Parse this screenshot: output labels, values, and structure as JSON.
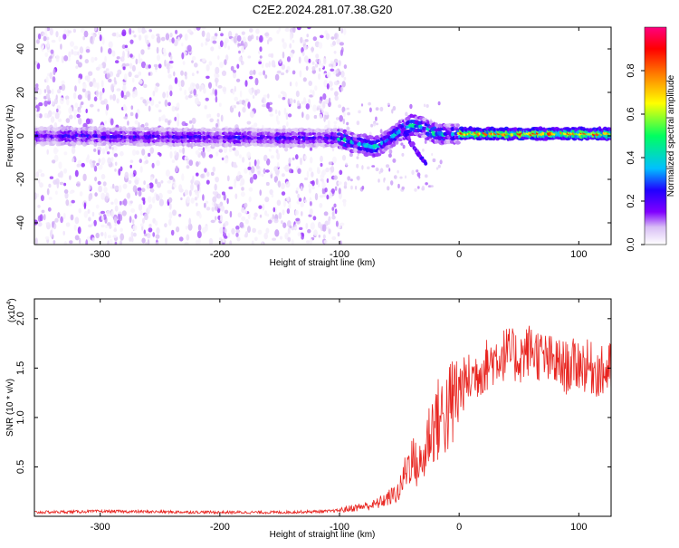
{
  "figure_title": "C2E2.2024.281.07.38.G20",
  "chart_data": [
    {
      "type": "heatmap",
      "xlabel": "Height of straight line (km)",
      "ylabel": "Frequency (Hz)",
      "xlim": [
        -355,
        127
      ],
      "ylim": [
        -50,
        50
      ],
      "x_ticks": [
        -300,
        -200,
        -100,
        0,
        100
      ],
      "y_ticks": [
        -40,
        -20,
        0,
        20,
        40
      ],
      "colorbar": {
        "label": "Normalized spectral amplitude",
        "range": [
          0.0,
          1.0
        ],
        "ticks": [
          0.0,
          0.2,
          0.4,
          0.6,
          0.8
        ],
        "colormap": [
          "#ffffff",
          "#d9bff5",
          "#8000ff",
          "#2000ff",
          "#00c0ff",
          "#00ff60",
          "#ffff00",
          "#ff8000",
          "#ff0000",
          "#ff0080"
        ]
      },
      "ridge": [
        {
          "x": -355,
          "f": 0
        },
        {
          "x": -100,
          "f": -1
        },
        {
          "x": -90,
          "f": -3
        },
        {
          "x": -80,
          "f": -4
        },
        {
          "x": -70,
          "f": -5
        },
        {
          "x": -60,
          "f": -2
        },
        {
          "x": -50,
          "f": 2
        },
        {
          "x": -40,
          "f": 5
        },
        {
          "x": -30,
          "f": 4
        },
        {
          "x": -20,
          "f": 1
        },
        {
          "x": 0,
          "f": 1
        },
        {
          "x": 127,
          "f": 1
        }
      ]
    },
    {
      "type": "line",
      "xlabel": "Height of straight line (km)",
      "ylabel": "SNR (10 * v/v)",
      "y_multiplier": "(x10",
      "y_multiplier_exp": "4",
      "y_multiplier_close": ")",
      "xlim": [
        -355,
        127
      ],
      "ylim": [
        0.0,
        2.2
      ],
      "x_ticks": [
        -300,
        -200,
        -100,
        0,
        100
      ],
      "y_ticks": [
        0.5,
        1.0,
        1.5,
        2.0
      ],
      "y_tick_labels": [
        "0.5",
        "1.0",
        "1.5",
        "2.0"
      ],
      "series": [
        {
          "color": "#e8231e",
          "x": [
            -355,
            -300,
            -200,
            -150,
            -110,
            -100,
            -90,
            -80,
            -70,
            -60,
            -50,
            -45,
            -40,
            -35,
            -30,
            -25,
            -20,
            -15,
            -10,
            -5,
            0,
            10,
            20,
            30,
            40,
            50,
            60,
            70,
            80,
            90,
            100,
            110,
            120,
            127
          ],
          "y": [
            0.04,
            0.05,
            0.04,
            0.04,
            0.05,
            0.06,
            0.08,
            0.1,
            0.12,
            0.18,
            0.25,
            0.45,
            0.6,
            0.5,
            0.55,
            0.85,
            0.95,
            1.0,
            1.05,
            1.15,
            1.3,
            1.4,
            1.5,
            1.6,
            1.65,
            1.6,
            1.7,
            1.6,
            1.55,
            1.5,
            1.55,
            1.5,
            1.45,
            1.5
          ]
        }
      ]
    }
  ]
}
